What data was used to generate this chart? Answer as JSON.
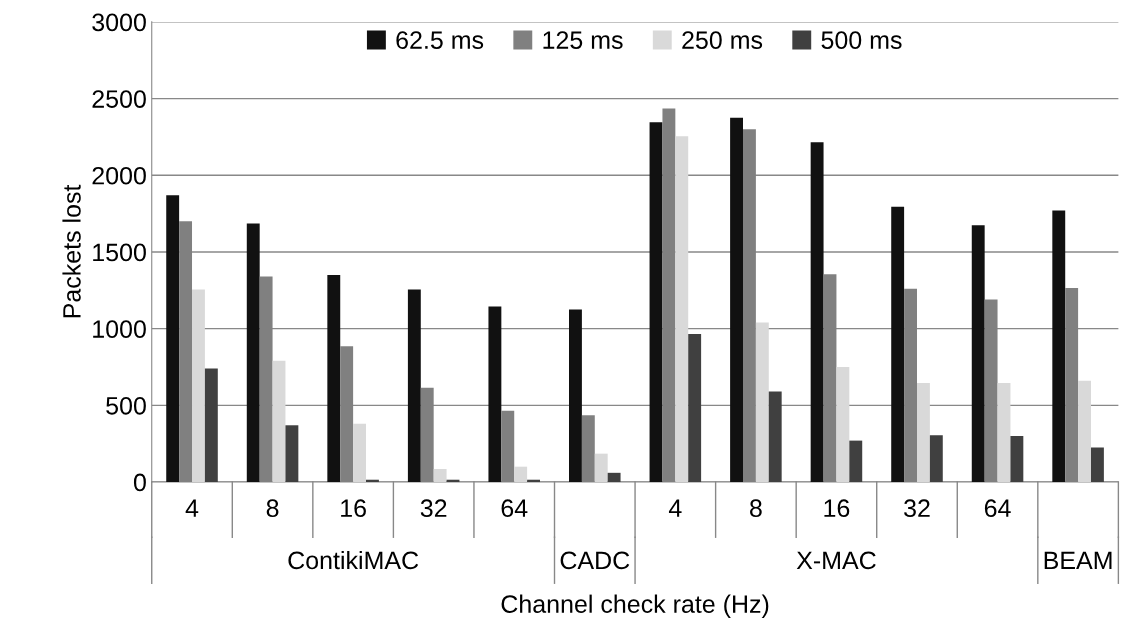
{
  "chart_data": {
    "type": "bar",
    "xlabel": "Channel check rate (Hz)",
    "ylabel": "Packets lost",
    "categories": [
      "4",
      "8",
      "16",
      "32",
      "64",
      null,
      "4",
      "8",
      "16",
      "32",
      "64",
      null
    ],
    "annotations": [
      "ContikiMAC",
      "CADC",
      "X-MAC",
      "BEAM"
    ],
    "series": [
      {
        "name": "62.5 ms",
        "color": "#111111",
        "values": [
          1870,
          1685,
          1350,
          1255,
          1145,
          1125,
          2345,
          2375,
          2215,
          1795,
          1675,
          1770
        ]
      },
      {
        "name": "125 ms",
        "color": "#808080",
        "values": [
          1700,
          1340,
          885,
          615,
          465,
          435,
          2435,
          2300,
          1355,
          1260,
          1190,
          1265
        ]
      },
      {
        "name": "250 ms",
        "color": "#d9d9d9",
        "values": [
          1255,
          790,
          380,
          85,
          100,
          185,
          2255,
          1040,
          750,
          645,
          645,
          660
        ]
      },
      {
        "name": "500 ms",
        "color": "#404040",
        "values": [
          740,
          370,
          15,
          15,
          15,
          60,
          965,
          590,
          270,
          305,
          300,
          225
        ]
      }
    ],
    "ylim": [
      0,
      3000
    ],
    "yticks": [
      0,
      500,
      1000,
      1500,
      2000,
      2500,
      3000
    ],
    "grid": "y",
    "legend": "top"
  }
}
